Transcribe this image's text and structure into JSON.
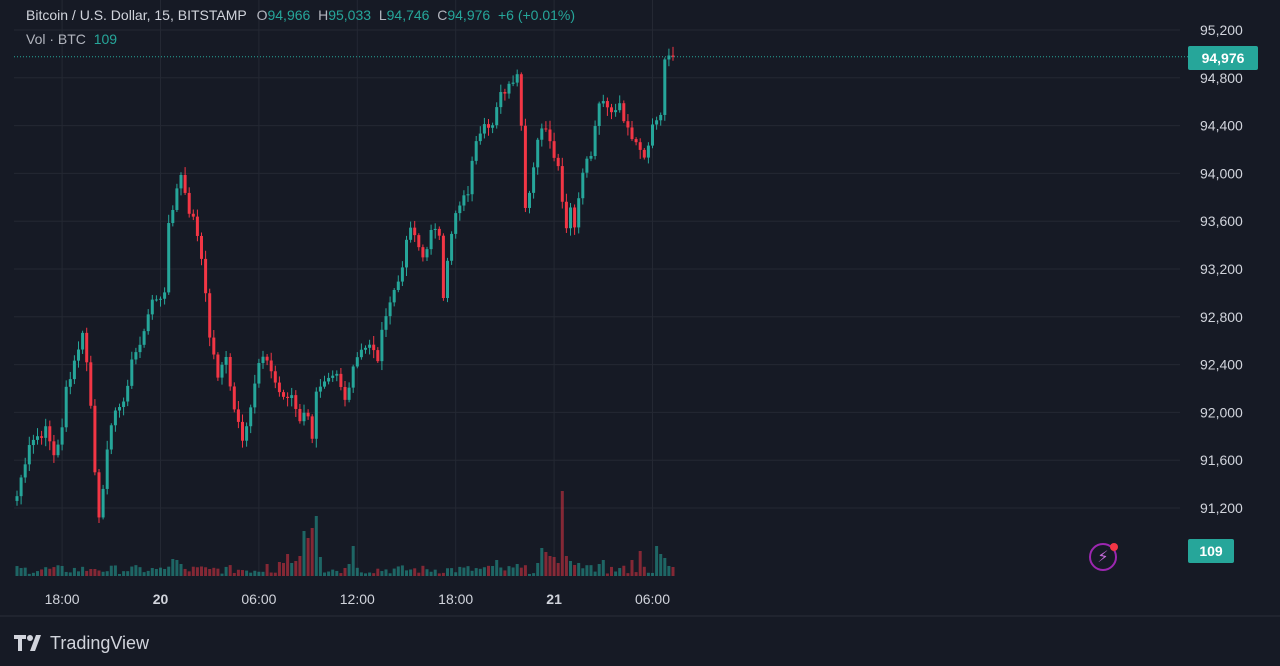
{
  "header": {
    "symbol": "Bitcoin / U.S. Dollar, 15, BITSTAMP",
    "open_label": "O",
    "open": "94,966",
    "high_label": "H",
    "high": "95,033",
    "low_label": "L",
    "low": "94,746",
    "close_label": "C",
    "close": "94,976",
    "change": "+6 (+0.01%)",
    "vol_label": "Vol · BTC",
    "vol_value": "109"
  },
  "price_tag": "94,976",
  "volume_tag": "109",
  "brand": "TradingView",
  "colors": {
    "up": "#26a69a",
    "down": "#f23645",
    "background": "#161a25",
    "grid": "#232733"
  },
  "chart_data": {
    "type": "candlestick",
    "symbol": "BTC/USD",
    "exchange": "BITSTAMP",
    "interval_minutes": 15,
    "ylim": [
      90750,
      95400
    ],
    "y_ticks": [
      91200,
      91600,
      92000,
      92400,
      92800,
      93200,
      93600,
      94000,
      94400,
      94800,
      95200
    ],
    "y_tick_labels": [
      "91,200",
      "91,600",
      "92,000",
      "92,400",
      "92,800",
      "93,200",
      "93,600",
      "94,000",
      "94,400",
      "94,800",
      "95,200"
    ],
    "x_ticks": [
      {
        "label": "18:00",
        "index": 11
      },
      {
        "label": "20",
        "index": 35
      },
      {
        "label": "06:00",
        "index": 59
      },
      {
        "label": "12:00",
        "index": 83
      },
      {
        "label": "18:00",
        "index": 107
      },
      {
        "label": "21",
        "index": 131
      },
      {
        "label": "06:00",
        "index": 155
      }
    ],
    "last_price": 94976,
    "anchors": [
      [
        0,
        91300
      ],
      [
        3,
        91750
      ],
      [
        7,
        91850
      ],
      [
        9,
        91650
      ],
      [
        11,
        91850
      ],
      [
        12,
        92200
      ],
      [
        15,
        92550
      ],
      [
        16,
        92650
      ],
      [
        17,
        92450
      ],
      [
        18,
        92050
      ],
      [
        19,
        91500
      ],
      [
        20,
        91150
      ],
      [
        22,
        91650
      ],
      [
        24,
        92050
      ],
      [
        26,
        92050
      ],
      [
        28,
        92450
      ],
      [
        30,
        92550
      ],
      [
        32,
        92850
      ],
      [
        34,
        92950
      ],
      [
        36,
        93000
      ],
      [
        37,
        93600
      ],
      [
        39,
        93850
      ],
      [
        40,
        94000
      ],
      [
        42,
        93700
      ],
      [
        44,
        93500
      ],
      [
        46,
        93000
      ],
      [
        47,
        92650
      ],
      [
        49,
        92300
      ],
      [
        51,
        92450
      ],
      [
        53,
        92050
      ],
      [
        55,
        91800
      ],
      [
        57,
        92050
      ],
      [
        59,
        92400
      ],
      [
        61,
        92450
      ],
      [
        63,
        92250
      ],
      [
        65,
        92100
      ],
      [
        67,
        92150
      ],
      [
        69,
        91950
      ],
      [
        71,
        92000
      ],
      [
        72,
        91800
      ],
      [
        73,
        92150
      ],
      [
        76,
        92250
      ],
      [
        78,
        92300
      ],
      [
        80,
        92100
      ],
      [
        82,
        92400
      ],
      [
        84,
        92550
      ],
      [
        86,
        92550
      ],
      [
        88,
        92450
      ],
      [
        90,
        92850
      ],
      [
        93,
        93100
      ],
      [
        96,
        93550
      ],
      [
        97,
        93450
      ],
      [
        99,
        93300
      ],
      [
        101,
        93500
      ],
      [
        103,
        93500
      ],
      [
        104,
        93000
      ],
      [
        105,
        93300
      ],
      [
        107,
        93650
      ],
      [
        110,
        93850
      ],
      [
        112,
        94300
      ],
      [
        114,
        94450
      ],
      [
        116,
        94400
      ],
      [
        118,
        94650
      ],
      [
        120,
        94750
      ],
      [
        122,
        94850
      ],
      [
        123,
        94400
      ],
      [
        124,
        93750
      ],
      [
        125,
        93850
      ],
      [
        127,
        94300
      ],
      [
        129,
        94400
      ],
      [
        130,
        94300
      ],
      [
        132,
        94050
      ],
      [
        134,
        93550
      ],
      [
        135,
        93750
      ],
      [
        136,
        93550
      ],
      [
        138,
        94050
      ],
      [
        140,
        94150
      ],
      [
        142,
        94600
      ],
      [
        145,
        94500
      ],
      [
        147,
        94600
      ],
      [
        149,
        94350
      ],
      [
        151,
        94300
      ],
      [
        153,
        94150
      ],
      [
        155,
        94400
      ],
      [
        157,
        94500
      ],
      [
        158,
        94950
      ],
      [
        159,
        94950
      ],
      [
        160,
        94976
      ]
    ],
    "volume_spikes": [
      [
        18,
        7
      ],
      [
        19,
        7
      ],
      [
        33,
        8
      ],
      [
        34,
        7
      ],
      [
        38,
        17
      ],
      [
        39,
        16
      ],
      [
        40,
        12
      ],
      [
        47,
        7
      ],
      [
        61,
        12
      ],
      [
        64,
        14
      ],
      [
        65,
        13
      ],
      [
        66,
        22
      ],
      [
        67,
        13
      ],
      [
        68,
        15
      ],
      [
        69,
        20
      ],
      [
        70,
        45
      ],
      [
        71,
        38
      ],
      [
        72,
        48
      ],
      [
        73,
        60
      ],
      [
        74,
        19
      ],
      [
        80,
        8
      ],
      [
        81,
        12
      ],
      [
        82,
        30
      ],
      [
        116,
        10
      ],
      [
        117,
        16
      ],
      [
        122,
        12
      ],
      [
        127,
        13
      ],
      [
        128,
        28
      ],
      [
        129,
        24
      ],
      [
        130,
        20
      ],
      [
        131,
        19
      ],
      [
        132,
        13
      ],
      [
        133,
        85
      ],
      [
        134,
        20
      ],
      [
        135,
        15
      ],
      [
        136,
        11
      ],
      [
        137,
        13
      ],
      [
        142,
        12
      ],
      [
        143,
        16
      ],
      [
        150,
        16
      ],
      [
        152,
        25
      ],
      [
        156,
        30
      ],
      [
        157,
        22
      ],
      [
        158,
        18
      ],
      [
        159,
        10
      ],
      [
        160,
        9
      ]
    ],
    "volume_last": 109
  }
}
